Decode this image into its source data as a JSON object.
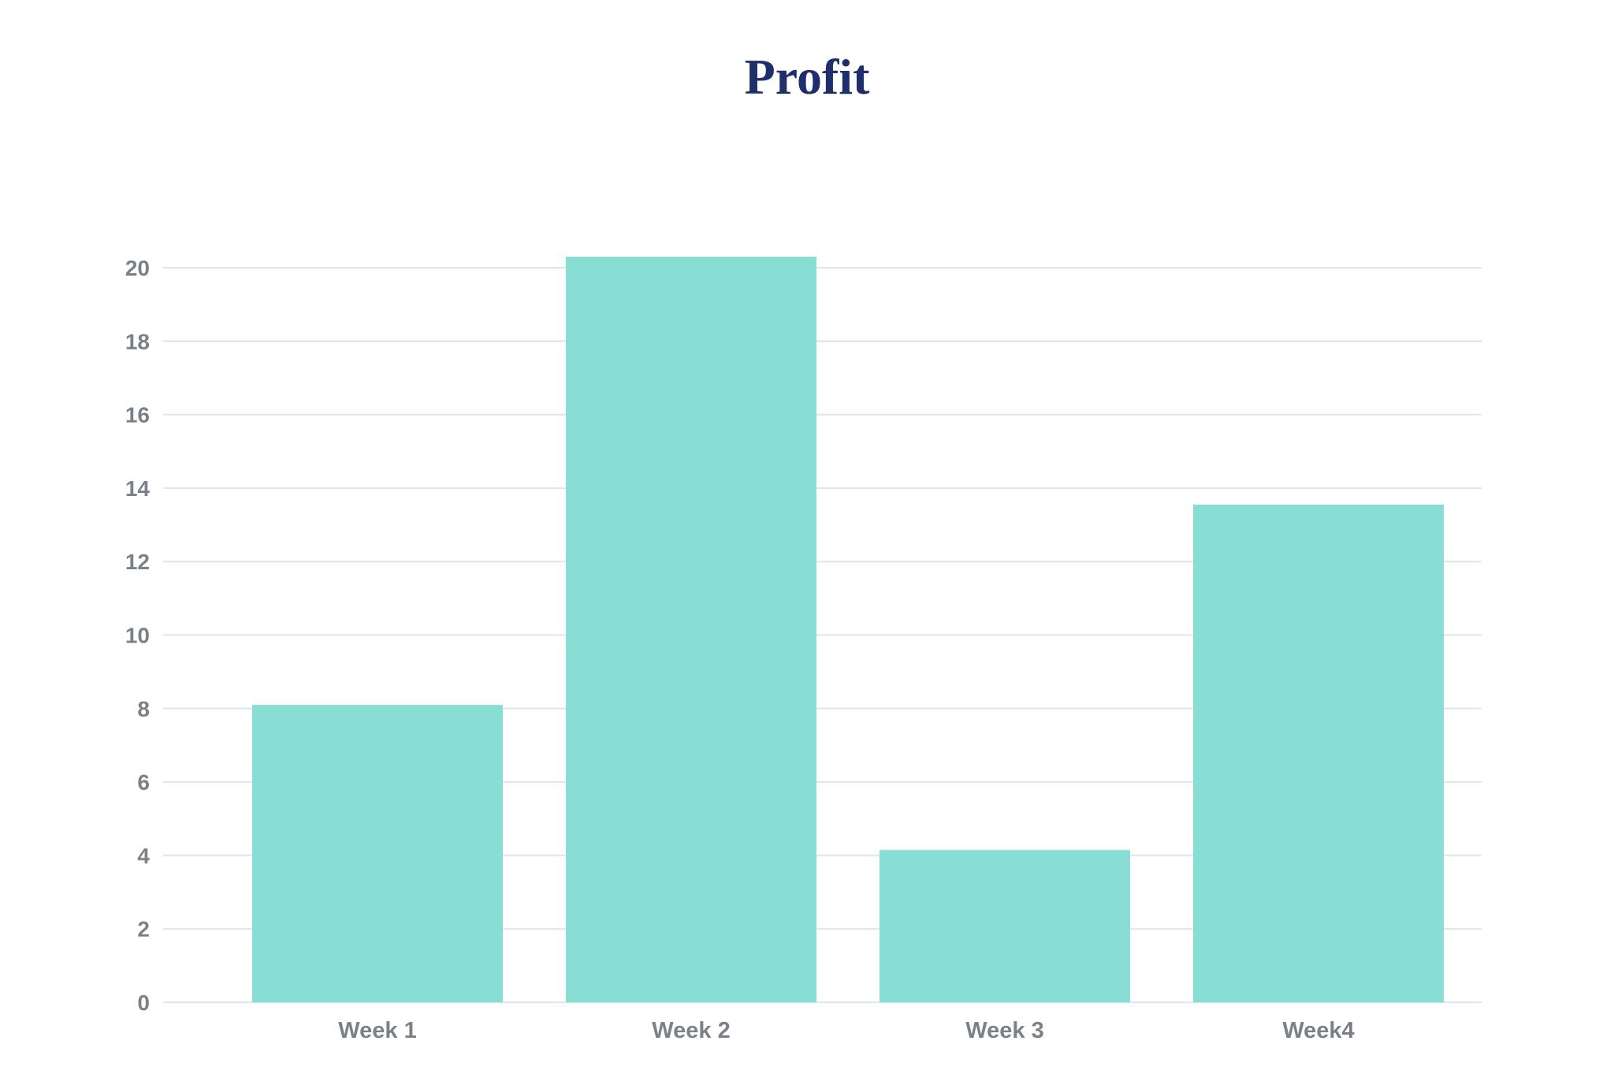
{
  "chart_data": {
    "type": "bar",
    "title": "Profit",
    "categories": [
      "Week 1",
      "Week 2",
      "Week 3",
      "Week4"
    ],
    "values": [
      8.1,
      20.3,
      4.15,
      13.55
    ],
    "xlabel": "",
    "ylabel": "",
    "ylim": [
      0,
      20
    ],
    "yticks": [
      "0",
      "2",
      "4",
      "6",
      "8",
      "10",
      "12",
      "14",
      "16",
      "18",
      "20"
    ],
    "grid": true,
    "legend": "none",
    "colors": {
      "bar": "#88ddd4",
      "title": "#1f2f6b",
      "gridline": "#dde6ee",
      "tick_text": "#7b8189"
    }
  }
}
